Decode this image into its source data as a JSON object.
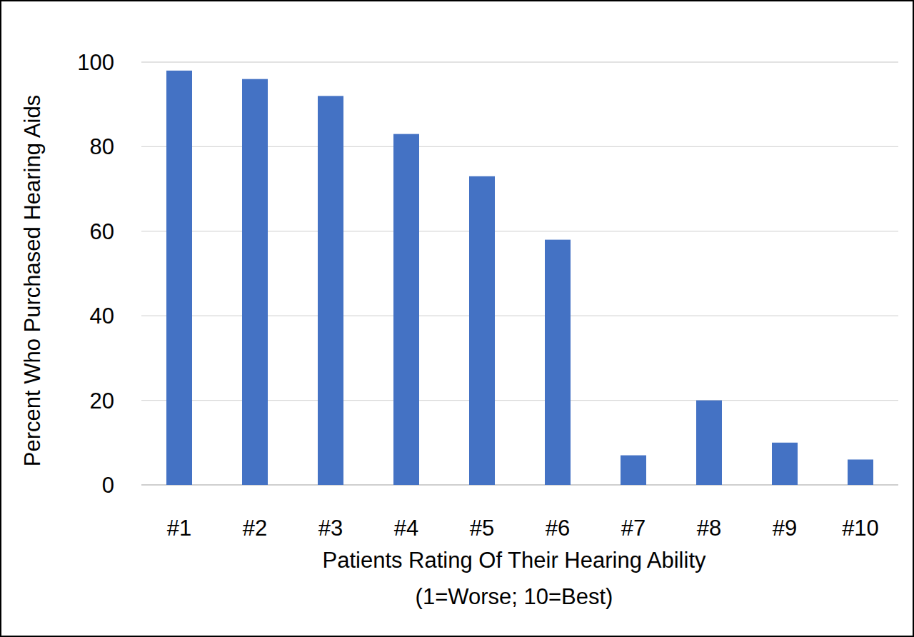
{
  "chart_data": {
    "type": "bar",
    "y_label": "Percent Who Purchased Hearing Aids",
    "x_label": [
      "Patients Rating Of Their Hearing Ability",
      "(1=Worse; 10=Best)"
    ],
    "categories": [
      "#1",
      "#2",
      "#3",
      "#4",
      "#5",
      "#6",
      "#7",
      "#8",
      "#9",
      "#10"
    ],
    "values": [
      98,
      96,
      92,
      83,
      73,
      58,
      7,
      20,
      10,
      6
    ],
    "color": "#4472c4",
    "ylim": [
      0,
      100
    ],
    "yticks": [
      0,
      20,
      40,
      60,
      80,
      100
    ],
    "grid": true
  }
}
